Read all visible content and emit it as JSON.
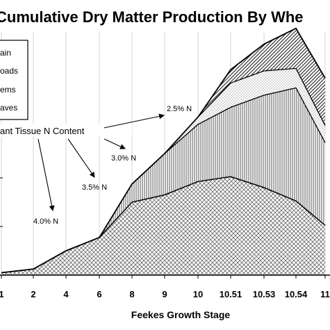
{
  "chart_data": {
    "type": "area",
    "stacked": true,
    "title": "Cumulative Dry Matter Production By Whe",
    "xlabel": "Feekes Growth Stage",
    "ylabel": "",
    "categories": [
      "1",
      "2",
      "4",
      "6",
      "8",
      "9",
      "10",
      "10.51",
      "10.53",
      "10.54",
      "11"
    ],
    "series": [
      {
        "name": "ain",
        "pattern": "crosshatch",
        "values": [
          2,
          5,
          20,
          31,
          60,
          66,
          77,
          81,
          72,
          61,
          41
        ]
      },
      {
        "name": "aves",
        "pattern": "vertical",
        "values": [
          0,
          0,
          0,
          0,
          15,
          34,
          47,
          57,
          76,
          93,
          68
        ]
      },
      {
        "name": "ems",
        "pattern": "dots",
        "values": [
          0,
          0,
          0,
          0,
          0,
          0,
          6,
          20,
          20,
          16,
          14
        ]
      },
      {
        "name": "oads",
        "pattern": "diagonal",
        "values": [
          0,
          0,
          0,
          0,
          0,
          0,
          0,
          11,
          22,
          33,
          39
        ]
      }
    ],
    "legend": {
      "position": "top-left",
      "entries": [
        "ain",
        "oads",
        "ems",
        "aves"
      ]
    },
    "annotations": [
      {
        "label": "ant Tissue N Content"
      },
      {
        "label": "2.5% N"
      },
      {
        "label": "3.0% N"
      },
      {
        "label": "3.5% N"
      },
      {
        "label": "4.0% N"
      }
    ],
    "grid": "vertical",
    "ylim": [
      0,
      200
    ]
  }
}
